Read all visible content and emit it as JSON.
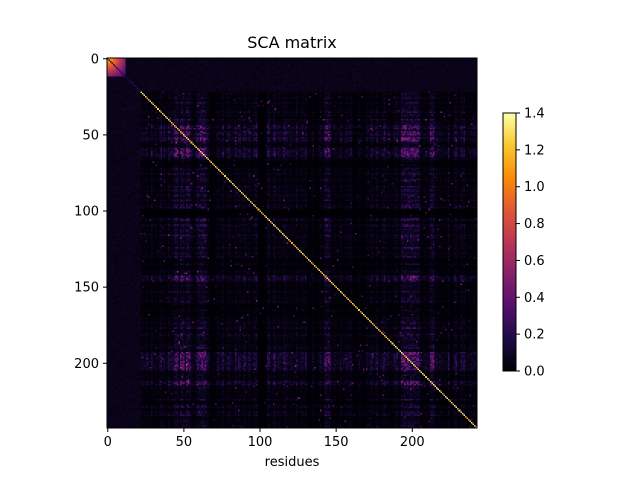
{
  "chart_data": {
    "type": "heatmap",
    "title": "SCA matrix",
    "xlabel": "residues",
    "ylabel": "",
    "n": 243,
    "x_ticks": [
      0,
      50,
      100,
      150,
      200
    ],
    "y_ticks": [
      0,
      50,
      100,
      150,
      200
    ],
    "colormap": "inferno",
    "colorbar": {
      "vmin": 0.0,
      "vmax": 1.4,
      "ticks": [
        "0.0",
        "0.2",
        "0.4",
        "0.6",
        "0.8",
        "1.0",
        "1.2",
        "1.4"
      ]
    },
    "structure": {
      "low_block_end": 22,
      "bright_corner_end": 12,
      "diagonal_value": 1.1,
      "hot_bands": [
        45,
        49,
        53,
        60,
        62,
        63,
        144,
        194,
        196,
        198,
        200,
        201,
        203,
        213
      ],
      "dark_bands": [
        68,
        70,
        100,
        101,
        103,
        133,
        137,
        163,
        168,
        226
      ]
    }
  }
}
